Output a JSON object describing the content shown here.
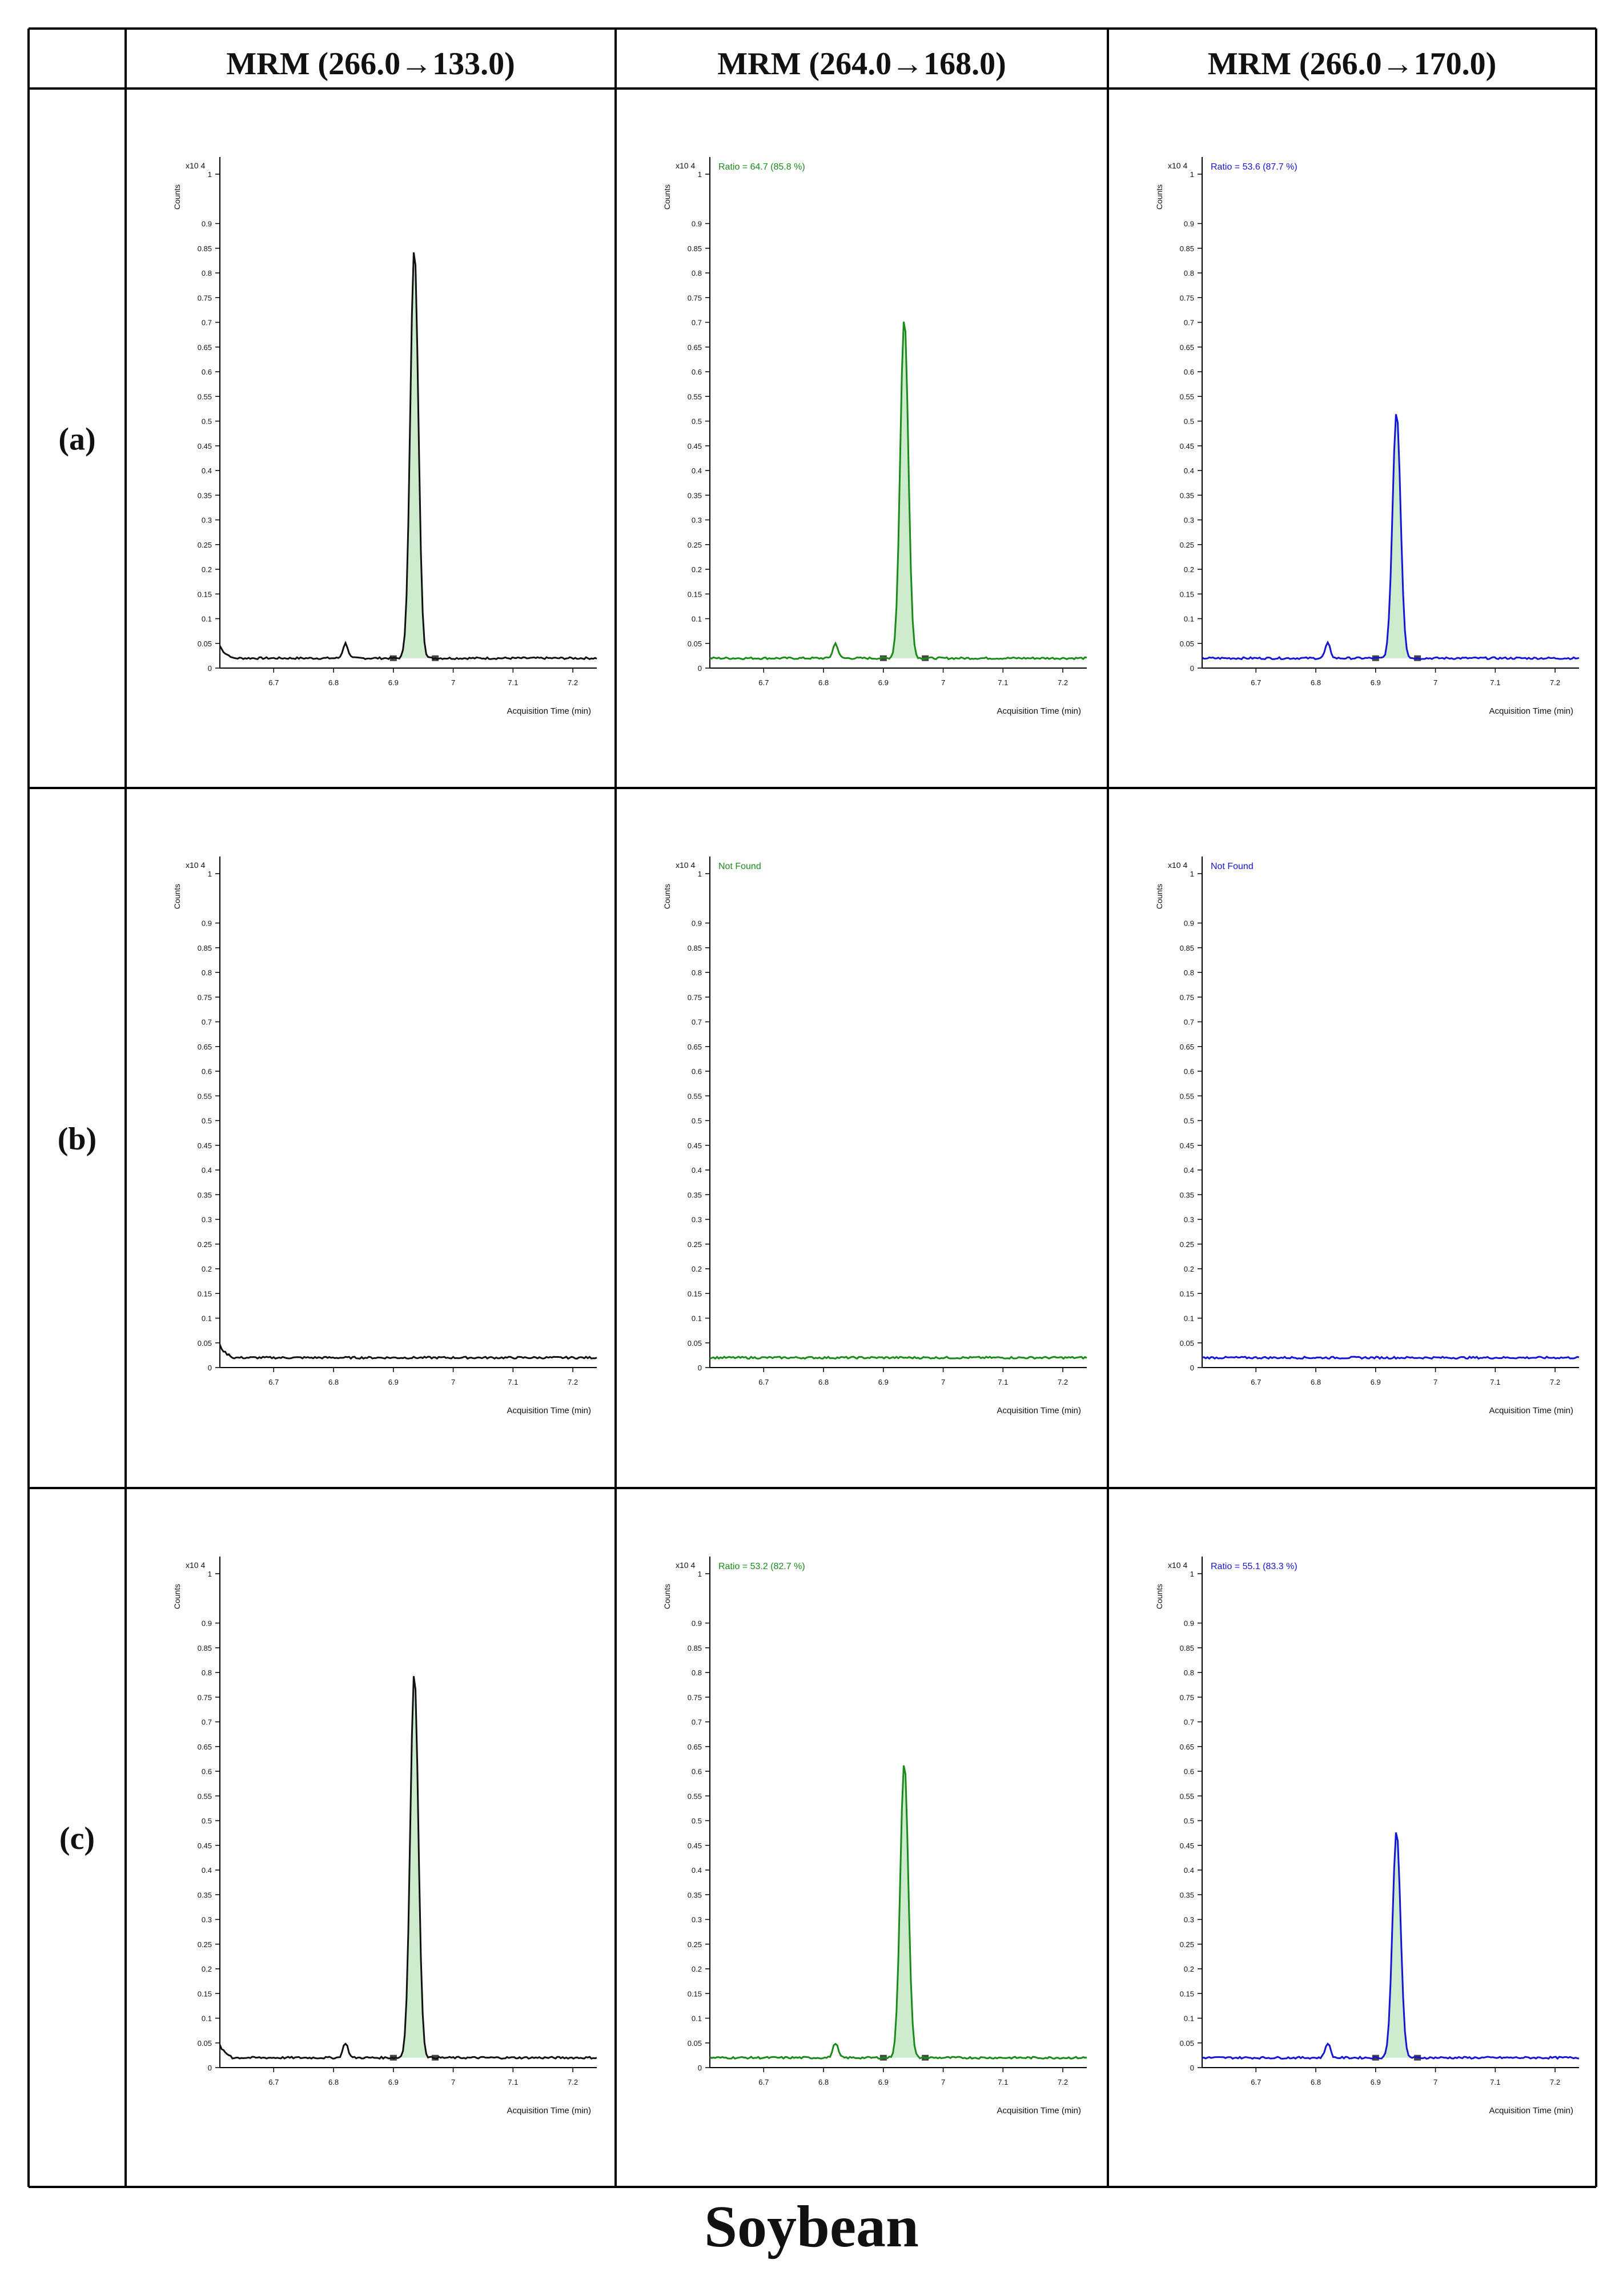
{
  "figure_title": "Soybean",
  "columns": [
    "MRM (266.0→133.0)",
    "MRM (264.0→168.0)",
    "MRM (266.0→170.0)"
  ],
  "rows": [
    "(a)",
    "(b)",
    "(c)"
  ],
  "colors": {
    "col1": "#111111",
    "col2": "#1a8a1a",
    "col3": "#1515d6",
    "fill": "#cdeccd",
    "grid": "#000000"
  },
  "axis": {
    "ylabel": "Counts",
    "xlabel": "Acquisition Time (min)",
    "y_multiplier": "x10 4",
    "y_ticks_a": [
      "0",
      "0.05",
      "0.1",
      "0.15",
      "0.2",
      "0.25",
      "0.3",
      "0.35",
      "0.4",
      "0.45",
      "0.5",
      "0.55",
      "0.6",
      "0.65",
      "0.7",
      "0.75",
      "0.8",
      "0.85",
      "0.9",
      "1"
    ],
    "x_ticks": [
      "6.7",
      "6.8",
      "6.9",
      "7",
      "7.1",
      "7.2"
    ]
  },
  "chart_data": [
    {
      "type": "line",
      "row": "(a)",
      "column": "MRM (266.0→133.0)",
      "color": "#111111",
      "label": "",
      "peak_height": 0.83,
      "x_range": [
        6.61,
        7.24
      ],
      "y_range": [
        0,
        1
      ],
      "xlabel": "Acquisition Time (min)",
      "ylabel": "Counts"
    },
    {
      "type": "line",
      "row": "(a)",
      "column": "MRM (264.0→168.0)",
      "color": "#1a8a1a",
      "label": "Ratio = 64.7 (85.8 %)",
      "peak_height": 0.69,
      "x_range": [
        6.61,
        7.24
      ],
      "y_range": [
        0,
        1
      ],
      "xlabel": "Acquisition Time (min)",
      "ylabel": "Counts"
    },
    {
      "type": "line",
      "row": "(a)",
      "column": "MRM (266.0→170.0)",
      "color": "#1515d6",
      "label": "Ratio = 53.6 (87.7 %)",
      "peak_height": 0.5,
      "x_range": [
        6.61,
        7.24
      ],
      "y_range": [
        0,
        1
      ],
      "xlabel": "Acquisition Time (min)",
      "ylabel": "Counts"
    },
    {
      "type": "line",
      "row": "(b)",
      "column": "MRM (266.0→133.0)",
      "color": "#111111",
      "label": "",
      "peak_height": 0,
      "x_range": [
        6.61,
        7.24
      ],
      "y_range": [
        0,
        1
      ],
      "xlabel": "Acquisition Time (min)",
      "ylabel": "Counts"
    },
    {
      "type": "line",
      "row": "(b)",
      "column": "MRM (264.0→168.0)",
      "color": "#1a8a1a",
      "label": "Not Found",
      "peak_height": 0,
      "x_range": [
        6.61,
        7.24
      ],
      "y_range": [
        0,
        1
      ],
      "xlabel": "Acquisition Time (min)",
      "ylabel": "Counts"
    },
    {
      "type": "line",
      "row": "(b)",
      "column": "MRM (266.0→170.0)",
      "color": "#1515d6",
      "label": "Not Found",
      "peak_height": 0,
      "x_range": [
        6.61,
        7.24
      ],
      "y_range": [
        0,
        1
      ],
      "xlabel": "Acquisition Time (min)",
      "ylabel": "Counts"
    },
    {
      "type": "line",
      "row": "(c)",
      "column": "MRM (266.0→133.0)",
      "color": "#111111",
      "label": "",
      "peak_height": 0.78,
      "x_range": [
        6.61,
        7.24
      ],
      "y_range": [
        0,
        1
      ],
      "xlabel": "Acquisition Time (min)",
      "ylabel": "Counts"
    },
    {
      "type": "line",
      "row": "(c)",
      "column": "MRM (264.0→168.0)",
      "color": "#1a8a1a",
      "label": "Ratio = 53.2 (82.7 %)",
      "peak_height": 0.6,
      "x_range": [
        6.61,
        7.24
      ],
      "y_range": [
        0,
        1
      ],
      "xlabel": "Acquisition Time (min)",
      "ylabel": "Counts"
    },
    {
      "type": "line",
      "row": "(c)",
      "column": "MRM (266.0→170.0)",
      "color": "#1515d6",
      "label": "Ratio = 55.1 (83.3 %)",
      "peak_height": 0.46,
      "x_range": [
        6.61,
        7.24
      ],
      "y_range": [
        0,
        1
      ],
      "xlabel": "Acquisition Time (min)",
      "ylabel": "Counts"
    }
  ]
}
